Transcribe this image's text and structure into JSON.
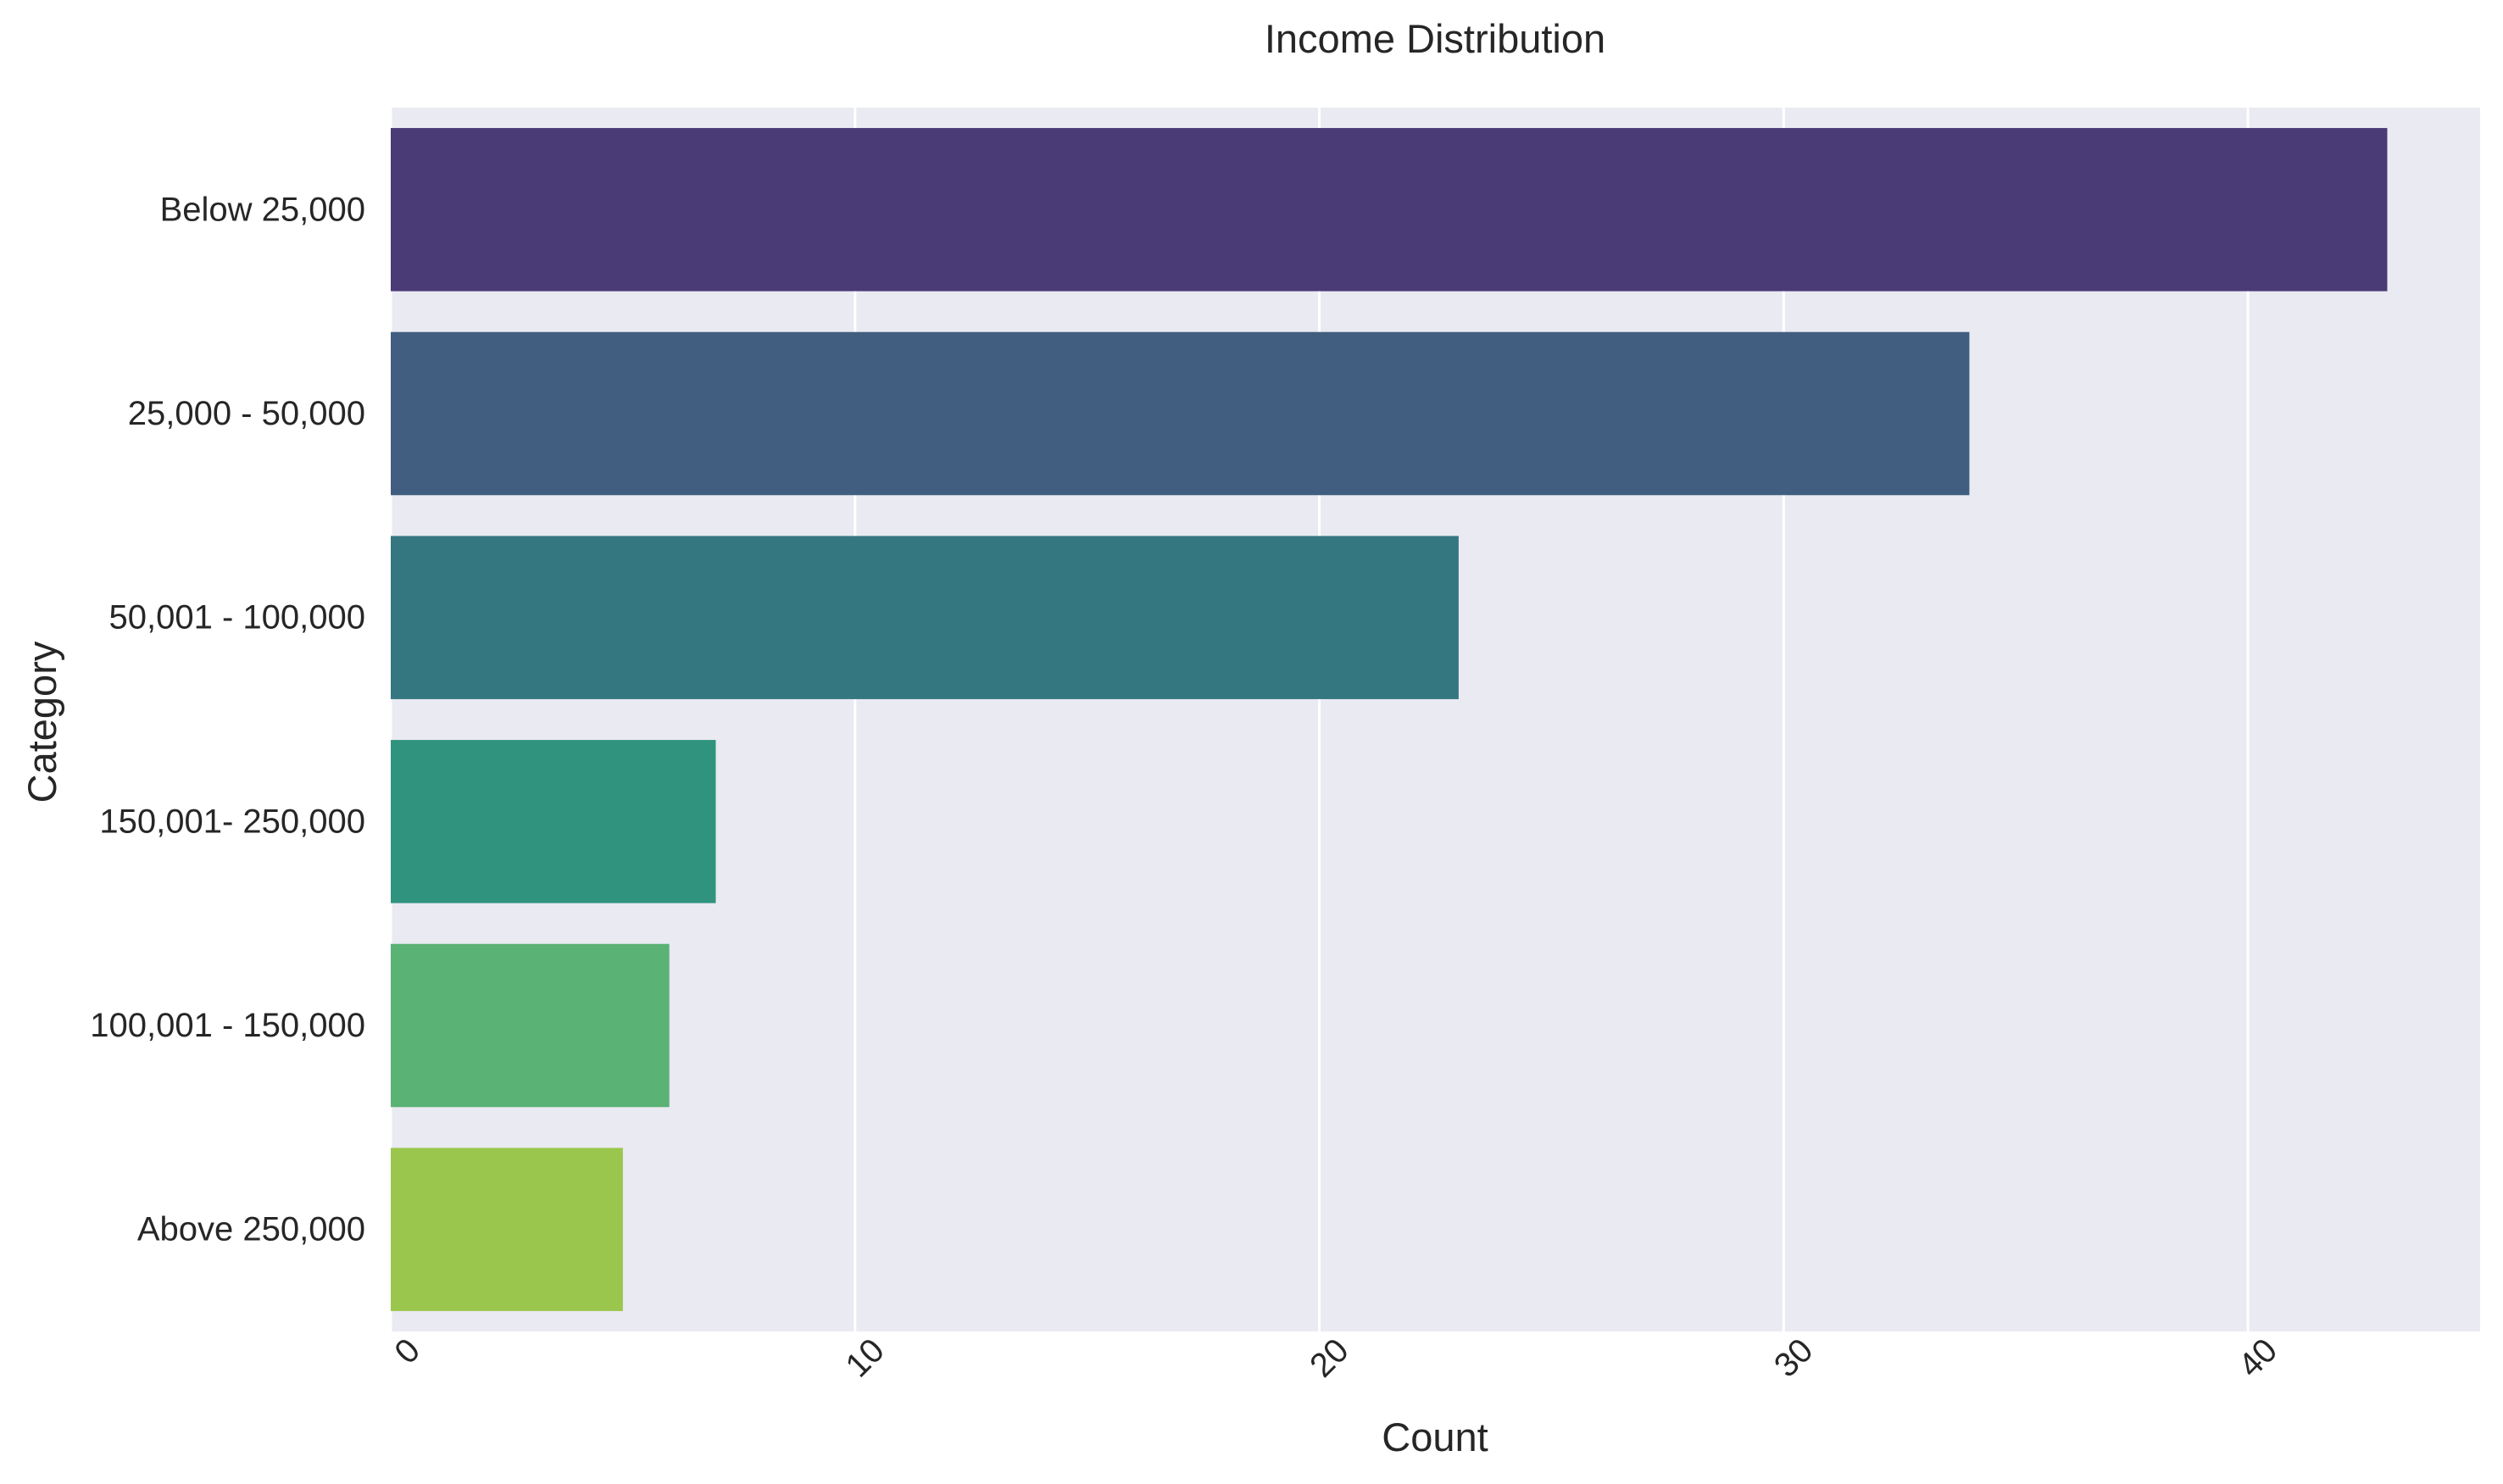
{
  "chart_data": {
    "type": "bar",
    "orientation": "horizontal",
    "title": "Income Distribution",
    "xlabel": "Count",
    "ylabel": "Category",
    "categories": [
      "Below 25,000",
      "25,000 - 50,000",
      "50,001 - 100,000",
      "150,001- 250,000",
      "100,001 - 150,000",
      "Above 250,000"
    ],
    "values": [
      43,
      34,
      23,
      7,
      6,
      5
    ],
    "xlim": [
      0,
      45
    ],
    "xticks": [
      "0",
      "10",
      "20",
      "30",
      "40"
    ],
    "xtick_rotation": -45,
    "grid": "x",
    "background_color": "#eaeaf2",
    "colors": [
      "#4a3a75",
      "#415e80",
      "#357780",
      "#30937e",
      "#5ab274",
      "#9bc64e"
    ]
  }
}
